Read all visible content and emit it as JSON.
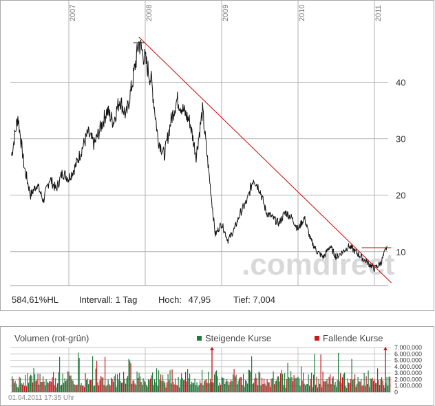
{
  "chart_data": [
    {
      "type": "line",
      "x_ticks": [
        "2007",
        "2008",
        "2009",
        "2010",
        "2011"
      ],
      "y_ticks": [
        10,
        20,
        30,
        40
      ],
      "ylim": [
        4,
        52
      ],
      "grid": true,
      "watermark": ".comdirect",
      "series": [
        {
          "x": [
            "2006-04",
            "2006-05",
            "2006-06",
            "2006-07",
            "2006-08",
            "2006-09",
            "2006-10",
            "2006-11",
            "2006-12",
            "2007-01",
            "2007-02",
            "2007-03",
            "2007-04",
            "2007-05",
            "2007-06",
            "2007-07",
            "2007-08",
            "2007-09",
            "2007-10",
            "2007-11",
            "2007-12",
            "2008-01",
            "2008-02",
            "2008-03",
            "2008-04",
            "2008-05",
            "2008-06",
            "2008-07",
            "2008-08",
            "2008-09",
            "2008-10",
            "2008-11",
            "2008-12",
            "2009-01",
            "2009-02",
            "2009-03",
            "2009-04",
            "2009-05",
            "2009-06",
            "2009-07",
            "2009-08",
            "2009-09",
            "2009-10",
            "2009-11",
            "2009-12",
            "2010-01",
            "2010-02",
            "2010-03",
            "2010-04",
            "2010-05",
            "2010-06",
            "2010-07",
            "2010-08",
            "2010-09",
            "2010-10",
            "2010-11",
            "2010-12",
            "2011-01",
            "2011-02",
            "2011-03"
          ],
          "y": [
            27,
            34,
            25,
            20,
            22,
            19,
            23,
            21,
            24,
            23,
            25,
            28,
            31,
            29,
            32,
            35,
            33,
            37,
            34,
            40,
            47,
            44,
            40,
            30,
            27,
            33,
            37,
            35,
            33,
            27,
            35,
            24,
            13,
            15,
            12,
            14,
            17,
            19,
            23,
            21,
            17,
            16,
            15,
            17,
            16,
            14,
            16,
            12,
            10,
            9,
            11,
            9,
            10,
            11,
            10,
            9,
            8,
            7,
            8,
            11
          ]
        }
      ],
      "trendlines": [
        {
          "color": "#cc0000",
          "from": {
            "x": "2007-12",
            "y": 48
          },
          "to": {
            "x": "2011-03",
            "y": 4.5
          }
        },
        {
          "color": "#cc0000",
          "from": {
            "x": "2010-11",
            "y": 10.7
          },
          "to": {
            "x": "2011-03",
            "y": 10.7
          }
        }
      ],
      "stats": {
        "change": "584,61%HL",
        "interval_label": "Intervall:",
        "interval_value": "1 Tag",
        "high_label": "Hoch:",
        "high_value": "47,95",
        "low_label": "Tief:",
        "low_value": "7,004"
      }
    },
    {
      "type": "bar",
      "title": "Volumen (rot-grün)",
      "y_ticks": [
        "0",
        "1.000.000",
        "2.000.000",
        "3.000.000",
        "4.000.000",
        "5.000.000",
        "6.000.000",
        "7.000.000"
      ],
      "ylim": [
        0,
        7000000
      ],
      "series": [
        {
          "name": "Steigende Kurse",
          "color": "#1e7a3a"
        },
        {
          "name": "Fallende Kurse",
          "color": "#c8191e"
        }
      ]
    }
  ],
  "timestamp": "01.04.2011 17:35 Uhr"
}
